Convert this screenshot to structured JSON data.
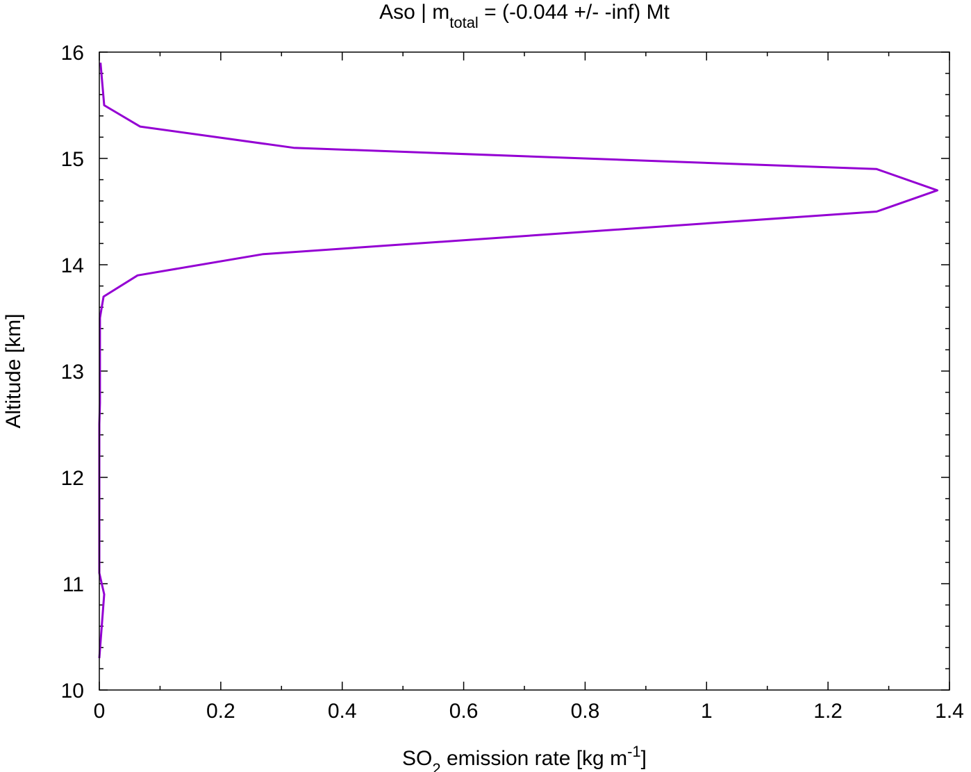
{
  "chart_data": {
    "type": "line",
    "title": {
      "prefix": "Aso | m",
      "subscript": "total",
      "suffix": " = (-0.044 +/- -inf) Mt"
    },
    "xlabel": {
      "prefix": "SO",
      "subscript": "2",
      "middle": " emission rate [kg m",
      "superscript": "-1",
      "suffix": "]"
    },
    "ylabel": "Altitude [km]",
    "xlim": [
      0,
      1.4
    ],
    "ylim": [
      10,
      16
    ],
    "xticks": [
      0,
      0.2,
      0.4,
      0.6,
      0.8,
      1,
      1.2,
      1.4
    ],
    "xtick_labels": [
      "0",
      "0.2",
      "0.4",
      "0.6",
      "0.8",
      "1",
      "1.2",
      "1.4"
    ],
    "yticks": [
      10,
      11,
      12,
      13,
      14,
      15,
      16
    ],
    "ytick_labels": [
      "10",
      "11",
      "12",
      "13",
      "14",
      "15",
      "16"
    ],
    "grid": false,
    "legend": "none",
    "series": [
      {
        "color": "#9400d3",
        "x": [
          0.0,
          0.008,
          0.0,
          0.0,
          0.0,
          0.0,
          0.0,
          0.0,
          0.0,
          0.0,
          0.001,
          0.001,
          0.001,
          0.001,
          0.001,
          0.007,
          0.063,
          0.27,
          1.28,
          1.38,
          1.28,
          0.32,
          0.067,
          0.008,
          0.002
        ],
        "y": [
          10.3,
          10.9,
          11.1,
          11.3,
          11.5,
          11.7,
          11.9,
          12.1,
          12.3,
          12.5,
          12.7,
          12.9,
          13.1,
          13.3,
          13.5,
          13.7,
          13.9,
          14.1,
          14.5,
          14.7,
          14.9,
          15.1,
          15.3,
          15.5,
          15.9
        ]
      }
    ]
  }
}
